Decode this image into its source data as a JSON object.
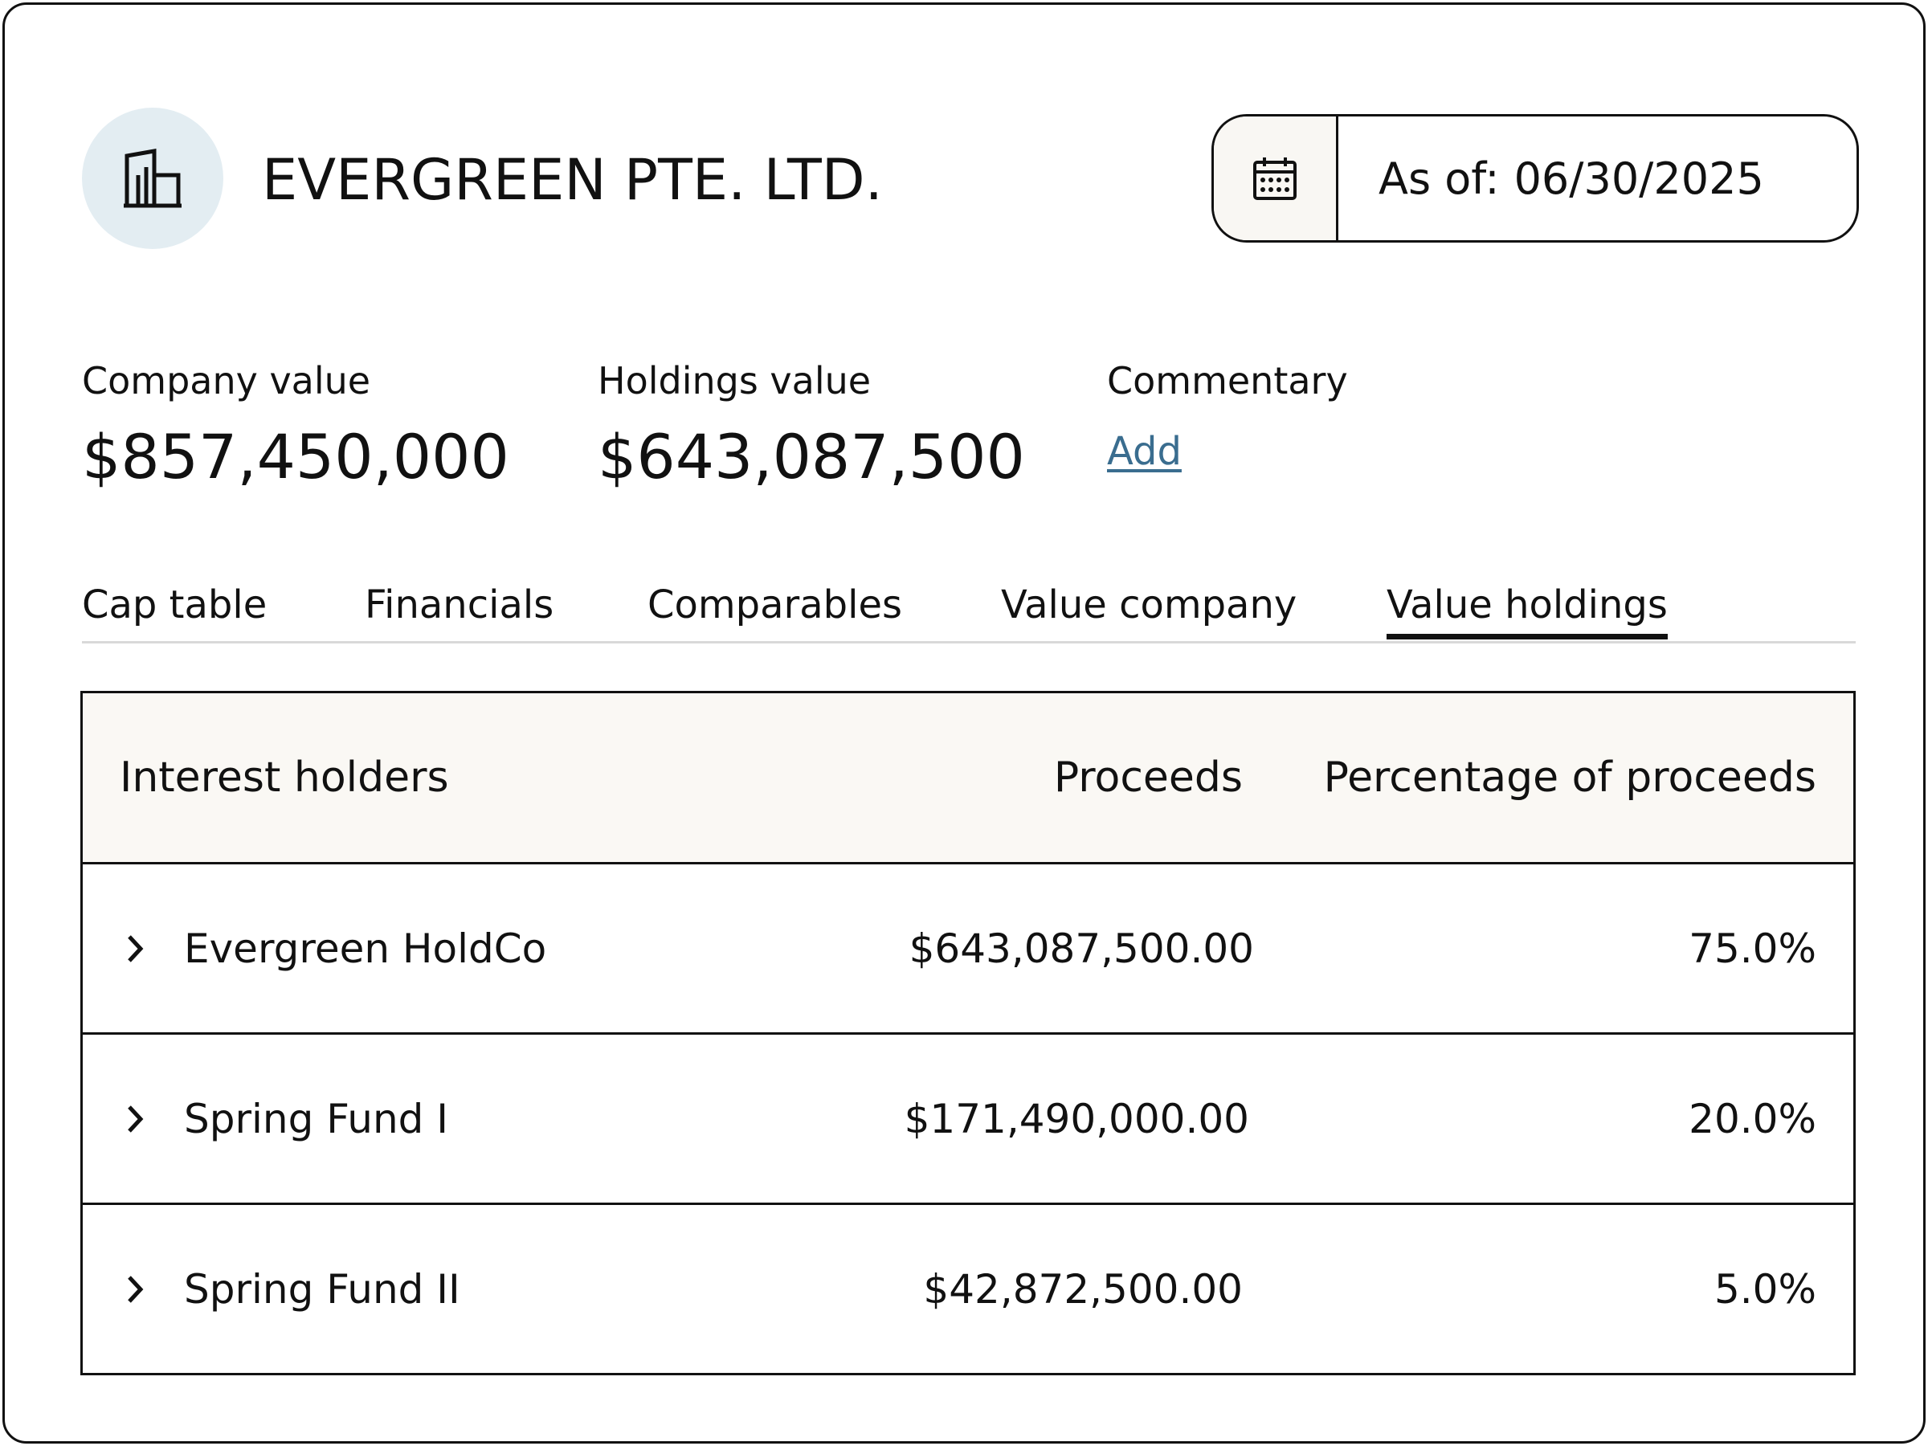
{
  "header": {
    "company_name": "EVERGREEN PTE. LTD.",
    "logo_icon": "building-icon",
    "date_picker": {
      "icon": "calendar-icon",
      "label": "As of:",
      "value": "06/30/2025"
    }
  },
  "metrics": {
    "company_value": {
      "label": "Company value",
      "value": "$857,450,000"
    },
    "holdings_value": {
      "label": "Holdings value",
      "value": "$643,087,500"
    },
    "commentary": {
      "label": "Commentary",
      "link": "Add"
    }
  },
  "tabs": [
    {
      "label": "Cap table",
      "active": false
    },
    {
      "label": "Financials",
      "active": false
    },
    {
      "label": "Comparables",
      "active": false
    },
    {
      "label": "Value company",
      "active": false
    },
    {
      "label": "Value holdings",
      "active": true
    }
  ],
  "table": {
    "columns": [
      "Interest holders",
      "Proceeds",
      "Percentage of proceeds"
    ],
    "rows": [
      {
        "holder": "Evergreen HoldCo",
        "proceeds": "$643,087,500.00",
        "percentage": "75.0%"
      },
      {
        "holder": "Spring Fund I",
        "proceeds": "$171,490,000.00",
        "percentage": "20.0%"
      },
      {
        "holder": "Spring Fund II",
        "proceeds": "$42,872,500.00",
        "percentage": "5.0%"
      }
    ]
  },
  "colors": {
    "text": "#111111",
    "logo_bg": "#e3edf2",
    "header_bg": "#faf8f4",
    "link": "#3a6d8f",
    "tab_divider": "#d9d9d9"
  }
}
